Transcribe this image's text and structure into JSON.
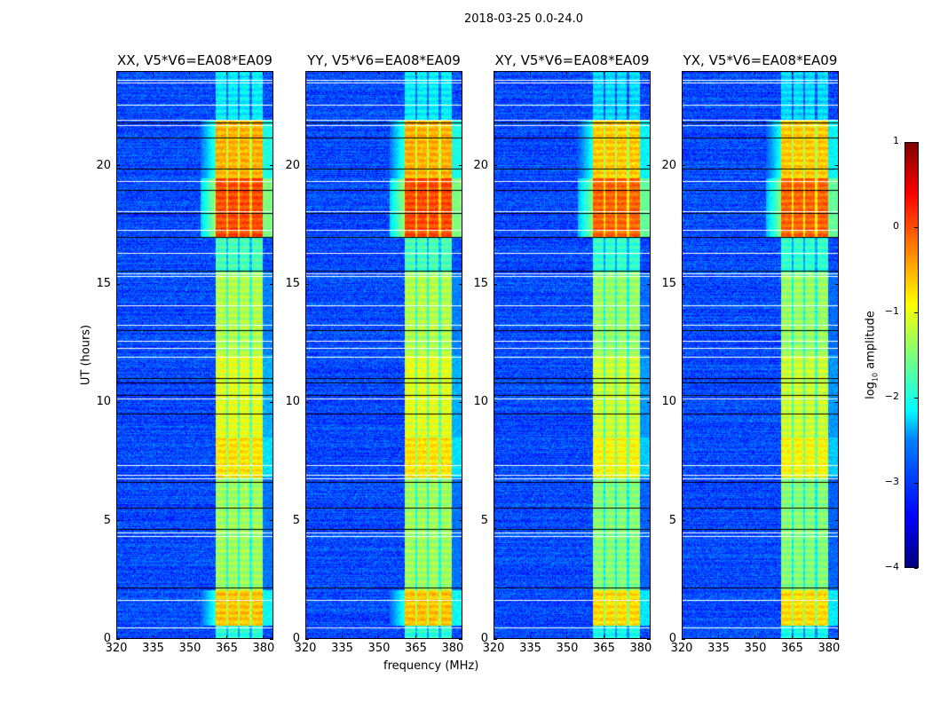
{
  "chart_data": {
    "type": "heatmap",
    "title": "2018-03-25 0.0-24.0",
    "xlabel": "frequency (MHz)",
    "ylabel": "UT (hours)",
    "xlim": [
      320,
      384
    ],
    "ylim": [
      0,
      24
    ],
    "xticks": [
      320,
      335,
      350,
      365,
      380
    ],
    "yticks": [
      0,
      5,
      10,
      15,
      20
    ],
    "panels": [
      {
        "title": "XX, V5*V6=EA08*EA09",
        "show_yticks": true
      },
      {
        "title": "YY, V5*V6=EA08*EA09",
        "show_yticks": true
      },
      {
        "title": "XY, V5*V6=EA08*EA09",
        "show_yticks": true
      },
      {
        "title": "YX, V5*V6=EA08*EA09",
        "show_yticks": true
      }
    ],
    "colorbar": {
      "label_prefix": "log",
      "label_sub": "10",
      "label_suffix": " amplitude",
      "range": [
        -4,
        1
      ],
      "ticks": [
        1,
        0,
        -1,
        -2,
        -3,
        -4
      ],
      "tick_labels": [
        "1",
        "0",
        "−1",
        "−2",
        "−3",
        "−4"
      ],
      "colormap": "jet"
    },
    "background_level": -3.3,
    "rfi_band_mhz": [
      360.5,
      380
    ],
    "subband_gaps_mhz": [
      365.4,
      370.2,
      375.1
    ],
    "band_levels_by_hour": [
      {
        "from": 0,
        "to": 0.5,
        "level": -2.0
      },
      {
        "from": 0.5,
        "to": 2.0,
        "level": -0.4
      },
      {
        "from": 2.0,
        "to": 6.8,
        "level": -1.3
      },
      {
        "from": 6.8,
        "to": 8.5,
        "level": -0.6
      },
      {
        "from": 8.5,
        "to": 12.0,
        "level": -0.9
      },
      {
        "from": 12.0,
        "to": 15.5,
        "level": -1.2
      },
      {
        "from": 15.5,
        "to": 17.0,
        "level": -1.8
      },
      {
        "from": 17.0,
        "to": 19.5,
        "level": 0.3
      },
      {
        "from": 19.5,
        "to": 22.0,
        "level": -0.3
      },
      {
        "from": 22.0,
        "to": 24.0,
        "level": -2.3
      }
    ],
    "flagged_hours": [
      0.4,
      1.6,
      4.3,
      4.45,
      6.75,
      6.9,
      7.3,
      10.15,
      11.9,
      12.3,
      12.6,
      13.25,
      14.1,
      15.35,
      15.45,
      16.3,
      17.3,
      18.1,
      19.35,
      21.75,
      21.95,
      22.6,
      23.55,
      23.65
    ],
    "blank_hours": [
      2.1,
      4.6,
      5.5,
      6.6,
      9.5,
      10.3,
      10.8,
      11.0,
      13.05,
      15.55,
      17.0,
      18.0,
      19.0,
      19.9,
      21.2,
      21.85
    ]
  }
}
